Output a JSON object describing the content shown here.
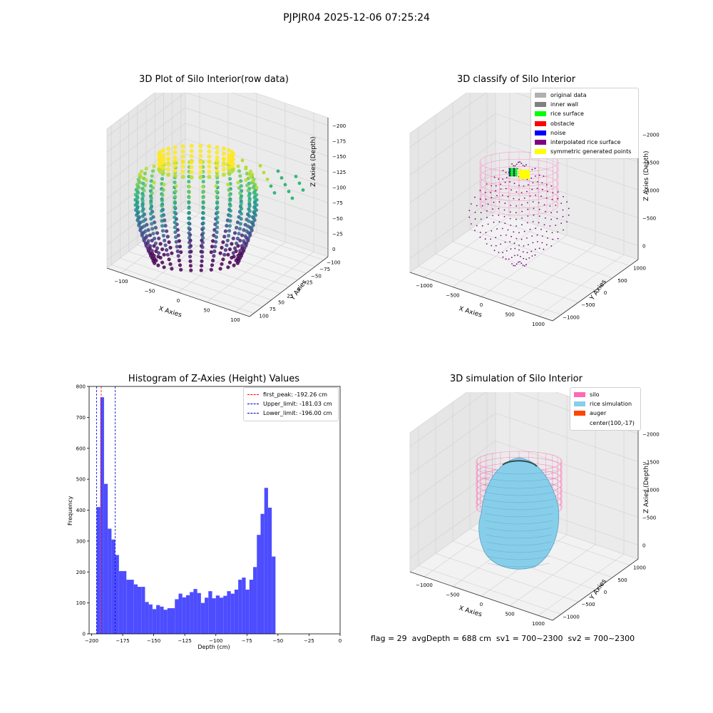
{
  "suptitle": "PJPJR04 2025-12-06 07:25:24",
  "plots": {
    "raw": {
      "title": "3D Plot of Silo Interior(row data)",
      "xlabel": "X Axies",
      "ylabel": "Y Axies",
      "zlabel": "Z Axies (Depth)",
      "xticks": [
        "−100",
        "−50",
        "0",
        "50",
        "100"
      ],
      "yticks": [
        "−100",
        "−75",
        "−50",
        "−25",
        "0",
        "25",
        "50",
        "75",
        "100"
      ],
      "zticks": [
        "0",
        "−25",
        "−50",
        "−75",
        "−100",
        "−125",
        "−150",
        "−175",
        "−200"
      ]
    },
    "classify": {
      "title": "3D classify of Silo Interior",
      "xlabel": "X Axies",
      "ylabel": "Y Axies",
      "zlabel": "Z Axies (Depth)",
      "xticks": [
        "−1000",
        "−500",
        "0",
        "500",
        "1000"
      ],
      "yticks": [
        "−1000",
        "−500",
        "0",
        "500",
        "1000"
      ],
      "zticks": [
        "0",
        "−500",
        "−1000",
        "−1500",
        "−2000"
      ],
      "legend": [
        {
          "label": "original data",
          "color": "#b0b0b0"
        },
        {
          "label": "inner wall",
          "color": "#808080"
        },
        {
          "label": "rice surface",
          "color": "#00ff00"
        },
        {
          "label": "obstacle",
          "color": "#ff0000"
        },
        {
          "label": "noise",
          "color": "#0000ff"
        },
        {
          "label": "interpolated rice surface",
          "color": "#800080"
        },
        {
          "label": "symmetric generated points",
          "color": "#ffff00"
        }
      ]
    },
    "sim": {
      "title": "3D simulation of Silo Interior",
      "xlabel": "X Axies",
      "ylabel": "Y Axies",
      "zlabel": "Z Axies (Depth)",
      "xticks": [
        "−1000",
        "−500",
        "0",
        "500",
        "1000"
      ],
      "yticks": [
        "−1000",
        "−500",
        "0",
        "500",
        "1000"
      ],
      "zticks": [
        "0",
        "−500",
        "−1000",
        "−1500",
        "−2000"
      ],
      "legend": [
        {
          "label": "silo",
          "color": "#ff69b4"
        },
        {
          "label": "rice simulation",
          "color": "#87ceeb"
        },
        {
          "label": "auger",
          "color": "#ff4500"
        },
        {
          "label": "center(100,-17)",
          "color": ""
        }
      ]
    }
  },
  "footer": "flag = 29  avgDepth = 688 cm  sv1 = 700~2300  sv2 = 700~2300",
  "colors": {
    "hist_bar": "#4d4dff",
    "peak_line": "#ff0000",
    "limit_line": "#0000cc"
  },
  "chart_data": [
    {
      "type": "bar",
      "title": "Histogram of Z-Axies (Height) Values",
      "xlabel": "Depth (cm)",
      "ylabel": "Frequency",
      "xlim": [
        -202,
        0
      ],
      "ylim": [
        0,
        800
      ],
      "xticks": [
        -200,
        -175,
        -150,
        -125,
        -100,
        -75,
        -50,
        -25,
        0
      ],
      "yticks": [
        0,
        100,
        200,
        300,
        400,
        500,
        600,
        700,
        800
      ],
      "bin_start": -196,
      "bin_width": 3.0,
      "values": [
        410,
        765,
        485,
        340,
        305,
        255,
        203,
        203,
        175,
        175,
        160,
        152,
        152,
        103,
        95,
        80,
        93,
        88,
        78,
        83,
        83,
        112,
        130,
        118,
        125,
        135,
        145,
        132,
        100,
        117,
        138,
        115,
        124,
        117,
        123,
        138,
        130,
        143,
        175,
        182,
        143,
        175,
        216,
        320,
        388,
        472,
        408,
        250
      ],
      "legend": [
        {
          "label": "first_peak: -192.26 cm",
          "value": -192.26,
          "color": "#ff0000"
        },
        {
          "label": "Upper_limit: -181.03 cm",
          "value": -181.03,
          "color": "#0000cc"
        },
        {
          "label": "Lower_limit: -196.00 cm",
          "value": -196.0,
          "color": "#0000cc"
        }
      ],
      "grid": false,
      "legend_position": "top-right"
    }
  ]
}
